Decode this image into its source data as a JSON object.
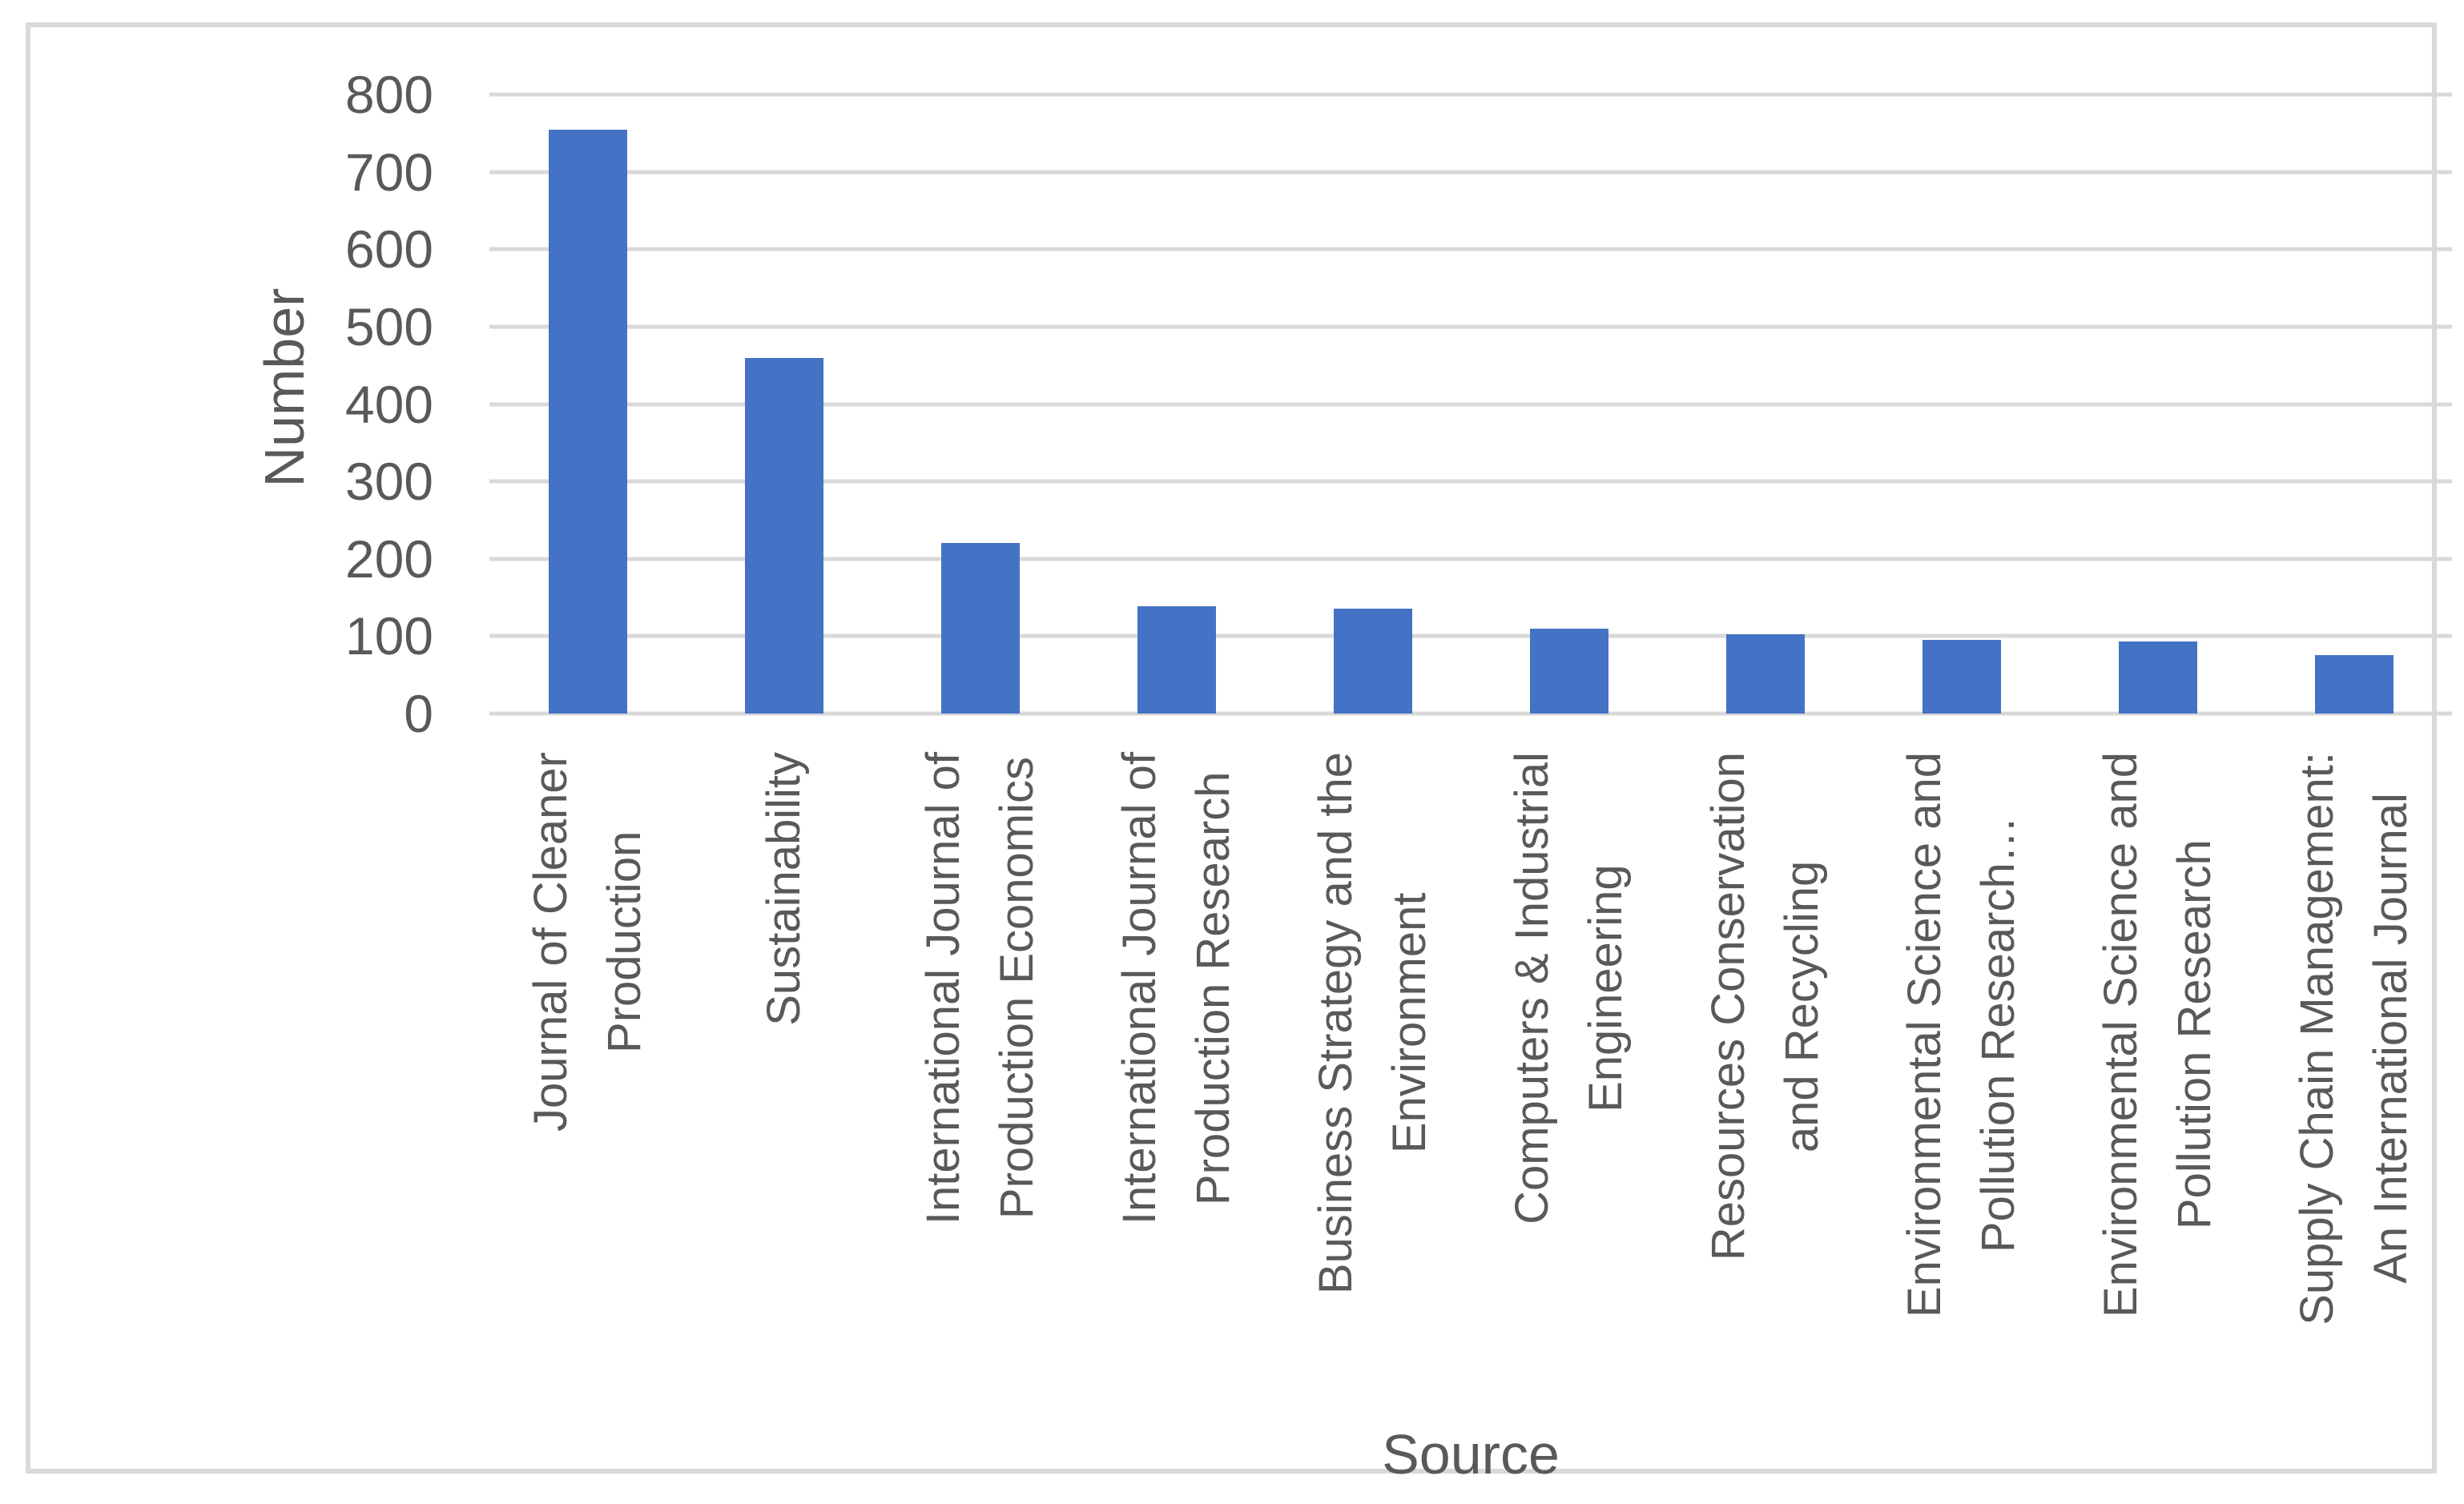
{
  "chart_data": {
    "type": "bar",
    "title": "",
    "xlabel": "Source",
    "ylabel": "Number",
    "ylim": [
      0,
      800
    ],
    "ytick_interval": 100,
    "yticks": [
      0,
      100,
      200,
      300,
      400,
      500,
      600,
      700,
      800
    ],
    "grid": true,
    "legend_position": "none",
    "categories": [
      "Journal of Cleaner Production",
      "Sustainability",
      "International Journal of Production Economics",
      "International Journal of Production Research",
      "Business Strategy and the Environment",
      "Computers & Industrial Engineering",
      "Resources Conservation and Recycling",
      "Environmental Science and Pollution Research…",
      "Environmental Science and Pollution Research",
      "Supply Chain Management: An International Journal"
    ],
    "category_label_lines": [
      [
        "Journal of Cleaner",
        "Production"
      ],
      [
        "Sustainability"
      ],
      [
        "International Journal of",
        "Production Economics"
      ],
      [
        "International Journal of",
        "Production Research"
      ],
      [
        "Business Strategy and the",
        "Environment"
      ],
      [
        "Computers & Industrial",
        "Engineering"
      ],
      [
        "Resources Conservation",
        "and Recycling"
      ],
      [
        "Environmental Science and",
        "Pollution Research…"
      ],
      [
        "Environmental Science and",
        "Pollution Research"
      ],
      [
        "Supply Chain Management:",
        "An International Journal"
      ]
    ],
    "values": [
      755,
      460,
      220,
      139,
      136,
      110,
      102,
      95,
      93,
      76
    ],
    "colors": {
      "bar": "#4472C4",
      "gridline": "#D9D9D9",
      "text": "#595959",
      "frame": "#D9D9D9",
      "background": "#FFFFFF"
    }
  }
}
